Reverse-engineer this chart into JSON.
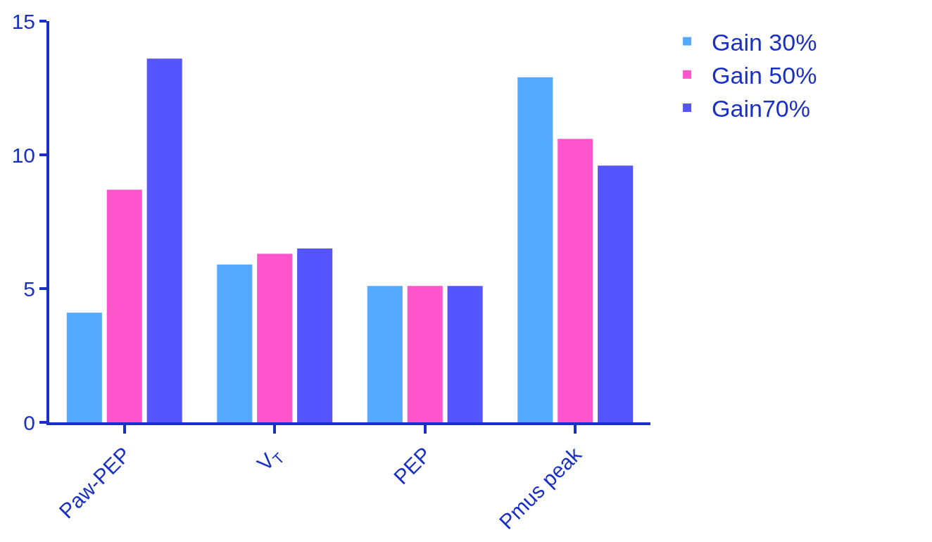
{
  "chart_data": {
    "type": "bar",
    "categories": [
      "Paw-PEP",
      "V$_{T}$",
      "PEP",
      "Pmus peak"
    ],
    "series": [
      {
        "name": "Gain 30%",
        "color": "#55aaff",
        "values": [
          4.1,
          5.9,
          5.1,
          12.9
        ]
      },
      {
        "name": "Gain 50%",
        "color": "#ff55cc",
        "values": [
          8.7,
          6.3,
          5.1,
          10.6
        ]
      },
      {
        "name": "Gain70%",
        "color": "#5555ff",
        "values": [
          13.6,
          6.5,
          5.1,
          9.6
        ]
      }
    ],
    "ylim": [
      0,
      15
    ],
    "yticks": [
      0,
      5,
      10,
      15
    ],
    "legend": "top right"
  }
}
